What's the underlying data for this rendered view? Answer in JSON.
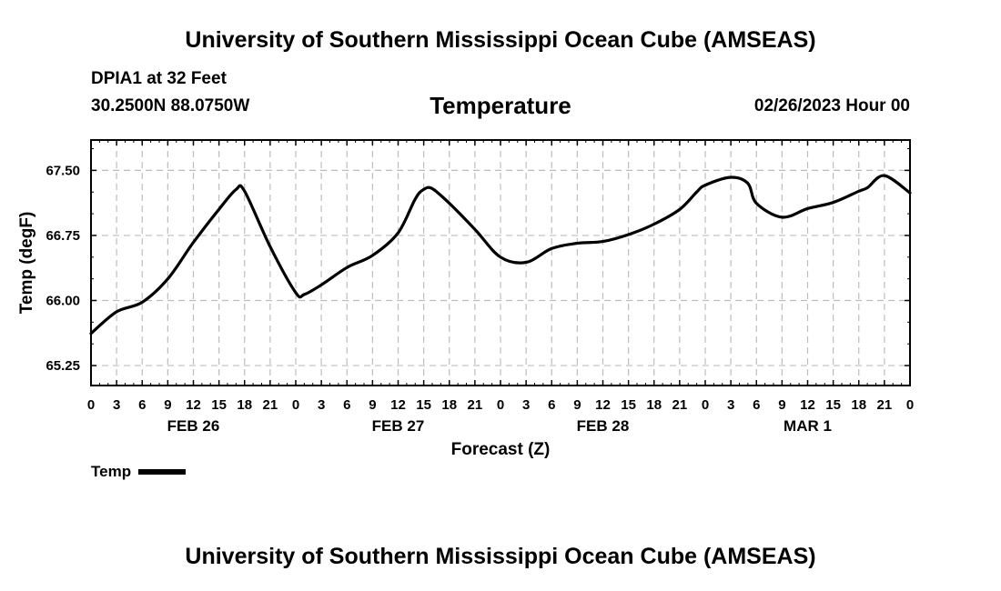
{
  "header": {
    "title": "University of Southern Mississippi Ocean Cube (AMSEAS)",
    "station": "DPIA1 at 32 Feet",
    "coords": "30.2500N  88.0750W",
    "variable": "Temperature",
    "datetime": "02/26/2023 Hour 00"
  },
  "footer": {
    "title": "University of Southern Mississippi Ocean Cube (AMSEAS)"
  },
  "legend": {
    "label": "Temp",
    "color": "#000000"
  },
  "chart_data": {
    "type": "line",
    "title": "Temperature",
    "xlabel": "Forecast (Z)",
    "ylabel": "Temp (degF)",
    "xlim": [
      0,
      96
    ],
    "ylim": [
      65.02,
      67.85
    ],
    "grid": true,
    "yticks": [
      65.25,
      66.0,
      66.75,
      67.5
    ],
    "ytick_labels": [
      "65.25",
      "66.00",
      "66.75",
      "67.50"
    ],
    "xticks": [
      0,
      3,
      6,
      9,
      12,
      15,
      18,
      21,
      24,
      27,
      30,
      33,
      36,
      39,
      42,
      45,
      48,
      51,
      54,
      57,
      60,
      63,
      66,
      69,
      72,
      75,
      78,
      81,
      84,
      87,
      90,
      93,
      96
    ],
    "xtick_labels": [
      "0",
      "3",
      "6",
      "9",
      "12",
      "15",
      "18",
      "21",
      "0",
      "3",
      "6",
      "9",
      "12",
      "15",
      "18",
      "21",
      "0",
      "3",
      "6",
      "9",
      "12",
      "15",
      "18",
      "21",
      "0",
      "3",
      "6",
      "9",
      "12",
      "15",
      "18",
      "21",
      "0"
    ],
    "day_labels": [
      {
        "x": 12,
        "label": "FEB 26"
      },
      {
        "x": 36,
        "label": "FEB 27"
      },
      {
        "x": 60,
        "label": "FEB 28"
      },
      {
        "x": 84,
        "label": "MAR 1"
      }
    ],
    "series": [
      {
        "name": "Temp",
        "x": [
          0,
          3,
          6,
          9,
          12,
          15,
          17,
          18,
          21,
          24,
          25,
          27,
          30,
          33,
          36,
          38,
          39,
          40,
          42,
          45,
          48,
          51,
          54,
          57,
          60,
          63,
          66,
          69,
          71,
          72,
          75,
          77,
          78,
          81,
          84,
          87,
          90,
          91,
          93,
          96
        ],
        "y": [
          65.62,
          65.87,
          65.98,
          66.25,
          66.67,
          67.05,
          67.28,
          67.26,
          66.62,
          66.09,
          66.07,
          66.18,
          66.38,
          66.52,
          66.78,
          67.17,
          67.28,
          67.29,
          67.12,
          66.82,
          66.5,
          66.44,
          66.6,
          66.66,
          66.68,
          66.76,
          66.88,
          67.05,
          67.25,
          67.33,
          67.42,
          67.35,
          67.12,
          66.96,
          67.06,
          67.13,
          67.26,
          67.3,
          67.44,
          67.24
        ]
      }
    ]
  }
}
